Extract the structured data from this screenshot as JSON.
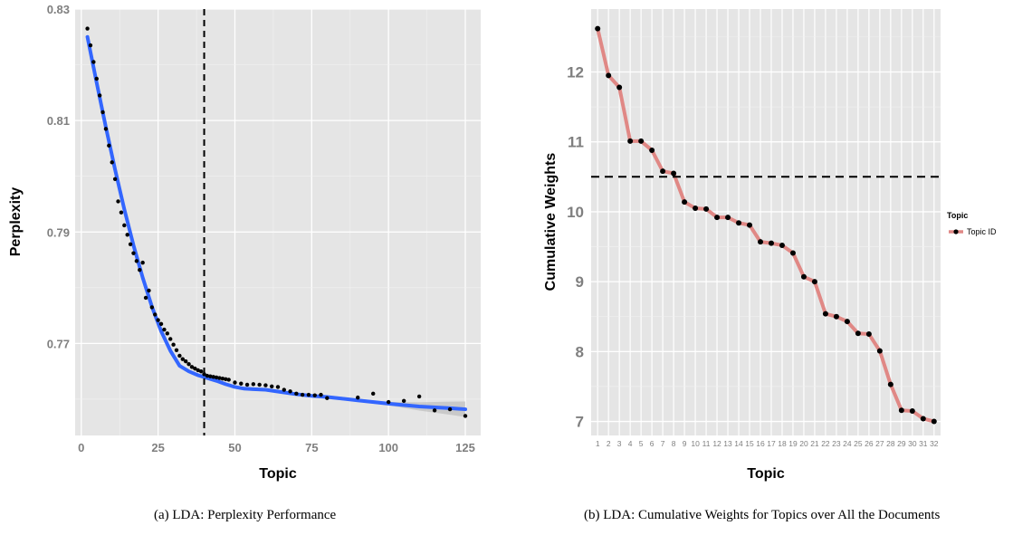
{
  "chart_data": [
    {
      "type": "scatter",
      "caption": "(a) LDA: Perplexity Performance",
      "xlabel": "Topic",
      "ylabel": "Perplexity",
      "xlim": [
        -2,
        130
      ],
      "ylim": [
        0.7535,
        0.83
      ],
      "xticks": [
        0,
        25,
        50,
        75,
        100,
        125
      ],
      "yticks": [
        0.77,
        0.79,
        0.81,
        0.83
      ],
      "ytick_labels": [
        "0.77",
        "0.79",
        "0.81",
        "0.83"
      ],
      "vline_x": 40,
      "smooth_color": "#3366ff",
      "points": [
        [
          2,
          0.8265
        ],
        [
          3,
          0.8235
        ],
        [
          4,
          0.8205
        ],
        [
          5,
          0.8175
        ],
        [
          6,
          0.8145
        ],
        [
          7,
          0.8115
        ],
        [
          8,
          0.8085
        ],
        [
          9,
          0.8055
        ],
        [
          10,
          0.8025
        ],
        [
          11,
          0.7995
        ],
        [
          12,
          0.7955
        ],
        [
          13,
          0.7935
        ],
        [
          14,
          0.7912
        ],
        [
          15,
          0.7895
        ],
        [
          16,
          0.7878
        ],
        [
          17,
          0.7862
        ],
        [
          18,
          0.7848
        ],
        [
          19,
          0.7832
        ],
        [
          20,
          0.7845
        ],
        [
          21,
          0.7782
        ],
        [
          22,
          0.7795
        ],
        [
          23,
          0.7765
        ],
        [
          24,
          0.7752
        ],
        [
          25,
          0.7742
        ],
        [
          26,
          0.7735
        ],
        [
          27,
          0.7725
        ],
        [
          28,
          0.7718
        ],
        [
          29,
          0.7708
        ],
        [
          30,
          0.7698
        ],
        [
          31,
          0.7688
        ],
        [
          32,
          0.7678
        ],
        [
          33,
          0.7672
        ],
        [
          34,
          0.7668
        ],
        [
          35,
          0.7663
        ],
        [
          36,
          0.7658
        ],
        [
          37,
          0.7655
        ],
        [
          38,
          0.7652
        ],
        [
          39,
          0.765
        ],
        [
          40,
          0.7645
        ],
        [
          41,
          0.7642
        ],
        [
          42,
          0.7641
        ],
        [
          43,
          0.764
        ],
        [
          44,
          0.7639
        ],
        [
          45,
          0.7638
        ],
        [
          46,
          0.7637
        ],
        [
          47,
          0.7636
        ],
        [
          48,
          0.7635
        ],
        [
          50,
          0.763
        ],
        [
          52,
          0.7628
        ],
        [
          54,
          0.7626
        ],
        [
          56,
          0.7627
        ],
        [
          58,
          0.7626
        ],
        [
          60,
          0.7625
        ],
        [
          62,
          0.7623
        ],
        [
          64,
          0.7622
        ],
        [
          66,
          0.7617
        ],
        [
          68,
          0.7614
        ],
        [
          70,
          0.761
        ],
        [
          72,
          0.7608
        ],
        [
          74,
          0.7608
        ],
        [
          76,
          0.7607
        ],
        [
          78,
          0.7608
        ],
        [
          80,
          0.7602
        ],
        [
          90,
          0.7603
        ],
        [
          95,
          0.761
        ],
        [
          100,
          0.7595
        ],
        [
          105,
          0.7597
        ],
        [
          110,
          0.7605
        ],
        [
          115,
          0.758
        ],
        [
          120,
          0.7582
        ],
        [
          125,
          0.757
        ]
      ],
      "smooth": [
        [
          2,
          0.825
        ],
        [
          5,
          0.8168
        ],
        [
          8,
          0.8088
        ],
        [
          11,
          0.8012
        ],
        [
          14,
          0.7941
        ],
        [
          17,
          0.7876
        ],
        [
          20,
          0.7818
        ],
        [
          23,
          0.7766
        ],
        [
          26,
          0.7722
        ],
        [
          29,
          0.7687
        ],
        [
          32,
          0.766
        ],
        [
          35,
          0.765
        ],
        [
          38,
          0.7643
        ],
        [
          41,
          0.7638
        ],
        [
          44,
          0.7633
        ],
        [
          47,
          0.7627
        ],
        [
          50,
          0.7622
        ],
        [
          53,
          0.7619
        ],
        [
          56,
          0.7618
        ],
        [
          60,
          0.7617
        ],
        [
          65,
          0.7613
        ],
        [
          70,
          0.7609
        ],
        [
          75,
          0.7606
        ],
        [
          80,
          0.7604
        ],
        [
          90,
          0.7598
        ],
        [
          100,
          0.7592
        ],
        [
          110,
          0.7587
        ],
        [
          120,
          0.7584
        ],
        [
          125,
          0.7582
        ]
      ]
    },
    {
      "type": "line",
      "caption": "(b) LDA: Cumulative Weights for Topics over All the Documents",
      "xlabel": "Topic",
      "ylabel": "Cumulative Weights",
      "ylim": [
        6.8,
        12.9
      ],
      "yticks": [
        7,
        8,
        9,
        10,
        11,
        12
      ],
      "hline_y": 10.5,
      "legend_title": "Topic",
      "series": [
        {
          "name": "Topic ID",
          "color": "#e08885",
          "categories": [
            "1",
            "2",
            "3",
            "4",
            "5",
            "6",
            "7",
            "8",
            "9",
            "10",
            "11",
            "12",
            "13",
            "14",
            "15",
            "16",
            "17",
            "18",
            "19",
            "20",
            "21",
            "22",
            "23",
            "24",
            "25",
            "26",
            "27",
            "28",
            "29",
            "30",
            "31",
            "32"
          ],
          "values": [
            12.62,
            11.95,
            11.78,
            11.01,
            11.01,
            10.88,
            10.58,
            10.55,
            10.14,
            10.05,
            10.04,
            9.92,
            9.92,
            9.84,
            9.81,
            9.57,
            9.55,
            9.52,
            9.41,
            9.07,
            9.0,
            8.54,
            8.5,
            8.43,
            8.26,
            8.25,
            8.01,
            7.53,
            7.16,
            7.15,
            7.04,
            7.0
          ]
        }
      ]
    }
  ]
}
